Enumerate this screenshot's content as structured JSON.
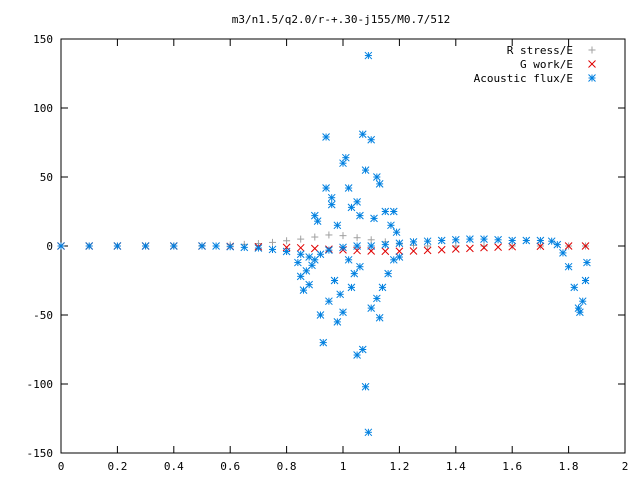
{
  "chart_data": {
    "type": "scatter",
    "title": "m3/n1.5/q2.0/r-+.30-j155/M0.7/512",
    "xlabel": "",
    "ylabel": "",
    "xlim": [
      0,
      2
    ],
    "ylim": [
      -150,
      150
    ],
    "x_ticks": [
      "0",
      "0.2",
      "0.4",
      "0.6",
      "0.8",
      "1",
      "1.2",
      "1.4",
      "1.6",
      "1.8",
      "2"
    ],
    "y_ticks": [
      "150",
      "100",
      "50",
      "0",
      "-50",
      "-100",
      "-150"
    ],
    "grid": false,
    "legend_position": "top-right",
    "series": [
      {
        "name": "R stress/E",
        "marker": "plus",
        "color": "#a0a0a0",
        "points": [
          [
            0.0,
            0
          ],
          [
            0.1,
            0
          ],
          [
            0.2,
            0
          ],
          [
            0.3,
            0
          ],
          [
            0.4,
            0
          ],
          [
            0.5,
            0.3
          ],
          [
            0.6,
            0.8
          ],
          [
            0.65,
            1.2
          ],
          [
            0.7,
            1.8
          ],
          [
            0.75,
            2.6
          ],
          [
            0.8,
            3.8
          ],
          [
            0.85,
            5
          ],
          [
            0.9,
            6.5
          ],
          [
            0.95,
            8
          ],
          [
            1.0,
            7.5
          ],
          [
            1.05,
            6
          ],
          [
            1.1,
            4.5
          ],
          [
            1.15,
            3
          ],
          [
            1.2,
            1.5
          ],
          [
            1.25,
            0.5
          ],
          [
            1.3,
            0
          ],
          [
            1.4,
            0
          ],
          [
            1.5,
            0
          ],
          [
            1.6,
            0
          ],
          [
            1.7,
            0
          ],
          [
            1.8,
            0
          ],
          [
            1.86,
            0
          ]
        ]
      },
      {
        "name": "G work/E",
        "marker": "cross",
        "color": "#e00000",
        "points": [
          [
            0.0,
            0
          ],
          [
            0.1,
            0
          ],
          [
            0.2,
            0
          ],
          [
            0.3,
            0
          ],
          [
            0.4,
            0
          ],
          [
            0.5,
            0
          ],
          [
            0.6,
            -0.3
          ],
          [
            0.7,
            -0.6
          ],
          [
            0.8,
            -1
          ],
          [
            0.85,
            -1.3
          ],
          [
            0.9,
            -1.8
          ],
          [
            0.95,
            -2.3
          ],
          [
            1.0,
            -2.8
          ],
          [
            1.05,
            -3.3
          ],
          [
            1.1,
            -3.6
          ],
          [
            1.15,
            -3.8
          ],
          [
            1.2,
            -3.8
          ],
          [
            1.25,
            -3.6
          ],
          [
            1.3,
            -3.2
          ],
          [
            1.35,
            -2.7
          ],
          [
            1.4,
            -2.2
          ],
          [
            1.45,
            -1.7
          ],
          [
            1.5,
            -1.2
          ],
          [
            1.55,
            -0.8
          ],
          [
            1.6,
            -0.5
          ],
          [
            1.7,
            -0.2
          ],
          [
            1.8,
            0
          ],
          [
            1.86,
            0
          ]
        ]
      },
      {
        "name": "Acoustic flux/E",
        "marker": "star",
        "color": "#0080e0",
        "points": [
          [
            0.0,
            0
          ],
          [
            0.1,
            0
          ],
          [
            0.2,
            0
          ],
          [
            0.3,
            0
          ],
          [
            0.4,
            0
          ],
          [
            0.5,
            0
          ],
          [
            0.55,
            0
          ],
          [
            0.6,
            -0.5
          ],
          [
            0.65,
            -1
          ],
          [
            0.7,
            -1.5
          ],
          [
            0.75,
            -2.5
          ],
          [
            0.8,
            -4
          ],
          [
            0.85,
            -6
          ],
          [
            0.88,
            -8
          ],
          [
            0.9,
            -10
          ],
          [
            0.92,
            -6
          ],
          [
            0.95,
            -3
          ],
          [
            1.0,
            -1
          ],
          [
            1.05,
            0
          ],
          [
            1.1,
            0
          ],
          [
            1.15,
            1
          ],
          [
            1.2,
            2
          ],
          [
            1.25,
            3
          ],
          [
            1.3,
            3.5
          ],
          [
            1.35,
            4
          ],
          [
            1.4,
            4.5
          ],
          [
            1.45,
            5
          ],
          [
            1.5,
            5
          ],
          [
            1.55,
            4.5
          ],
          [
            1.6,
            4
          ],
          [
            1.65,
            4
          ],
          [
            1.7,
            4
          ],
          [
            1.74,
            3.5
          ],
          [
            1.76,
            1
          ],
          [
            1.78,
            -5
          ],
          [
            1.8,
            -15
          ],
          [
            1.82,
            -30
          ],
          [
            1.835,
            -45
          ],
          [
            1.84,
            -48
          ],
          [
            1.85,
            -40
          ],
          [
            1.86,
            -25
          ],
          [
            1.865,
            -12
          ],
          [
            0.84,
            -12
          ],
          [
            0.85,
            -22
          ],
          [
            0.86,
            -32
          ],
          [
            0.87,
            -18
          ],
          [
            0.88,
            -28
          ],
          [
            0.89,
            -14
          ],
          [
            0.9,
            22
          ],
          [
            0.91,
            18
          ],
          [
            0.92,
            -50
          ],
          [
            0.93,
            -70
          ],
          [
            0.94,
            79
          ],
          [
            0.94,
            42
          ],
          [
            0.95,
            -40
          ],
          [
            0.96,
            30
          ],
          [
            0.96,
            35
          ],
          [
            0.97,
            -25
          ],
          [
            0.98,
            -55
          ],
          [
            0.98,
            15
          ],
          [
            0.99,
            -35
          ],
          [
            1.0,
            60
          ],
          [
            1.0,
            -48
          ],
          [
            1.01,
            64
          ],
          [
            1.02,
            -10
          ],
          [
            1.02,
            42
          ],
          [
            1.03,
            -30
          ],
          [
            1.03,
            28
          ],
          [
            1.04,
            -20
          ],
          [
            1.05,
            -79
          ],
          [
            1.05,
            32
          ],
          [
            1.06,
            22
          ],
          [
            1.06,
            -15
          ],
          [
            1.07,
            -75
          ],
          [
            1.07,
            81
          ],
          [
            1.08,
            55
          ],
          [
            1.08,
            -102
          ],
          [
            1.09,
            138
          ],
          [
            1.09,
            -135
          ],
          [
            1.1,
            77
          ],
          [
            1.1,
            -45
          ],
          [
            1.11,
            20
          ],
          [
            1.12,
            -38
          ],
          [
            1.12,
            50
          ],
          [
            1.13,
            45
          ],
          [
            1.13,
            -52
          ],
          [
            1.14,
            -30
          ],
          [
            1.15,
            25
          ],
          [
            1.16,
            -20
          ],
          [
            1.17,
            15
          ],
          [
            1.18,
            25
          ],
          [
            1.18,
            -10
          ],
          [
            1.19,
            10
          ],
          [
            1.2,
            -8
          ]
        ]
      }
    ]
  }
}
